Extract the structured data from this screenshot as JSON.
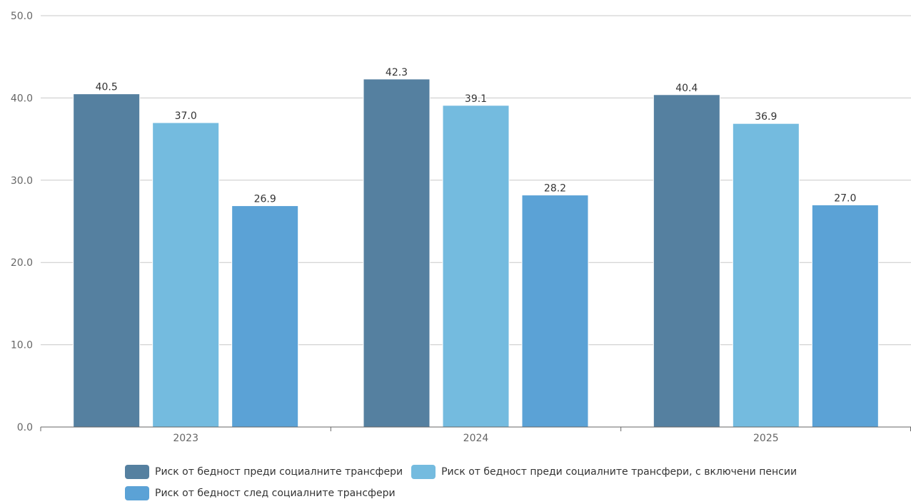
{
  "chart_data": {
    "type": "bar",
    "title": "",
    "xlabel": "",
    "ylabel": "",
    "ylim": [
      0,
      50
    ],
    "yticks": [
      "0.0",
      "10.0",
      "20.0",
      "30.0",
      "40.0",
      "50.0"
    ],
    "grid": true,
    "legend_position": "bottom",
    "categories": [
      "2023",
      "2024",
      "2025"
    ],
    "series": [
      {
        "name": "Риск от бедност преди социалните трансфери",
        "color": "#5580a0",
        "values": [
          40.5,
          42.3,
          40.4
        ],
        "labels": [
          "40.5",
          "42.3",
          "40.4"
        ]
      },
      {
        "name": "Риск от бедност преди социалните трансфери, с включени пенсии",
        "color": "#74bbdf",
        "values": [
          37.0,
          39.1,
          36.9
        ],
        "labels": [
          "37.0",
          "39.1",
          "36.9"
        ]
      },
      {
        "name": "Риск от бедност след социалните трансфери",
        "color": "#5ba2d6",
        "values": [
          26.9,
          28.2,
          27.0
        ],
        "labels": [
          "26.9",
          "28.2",
          "27.0"
        ]
      }
    ]
  }
}
